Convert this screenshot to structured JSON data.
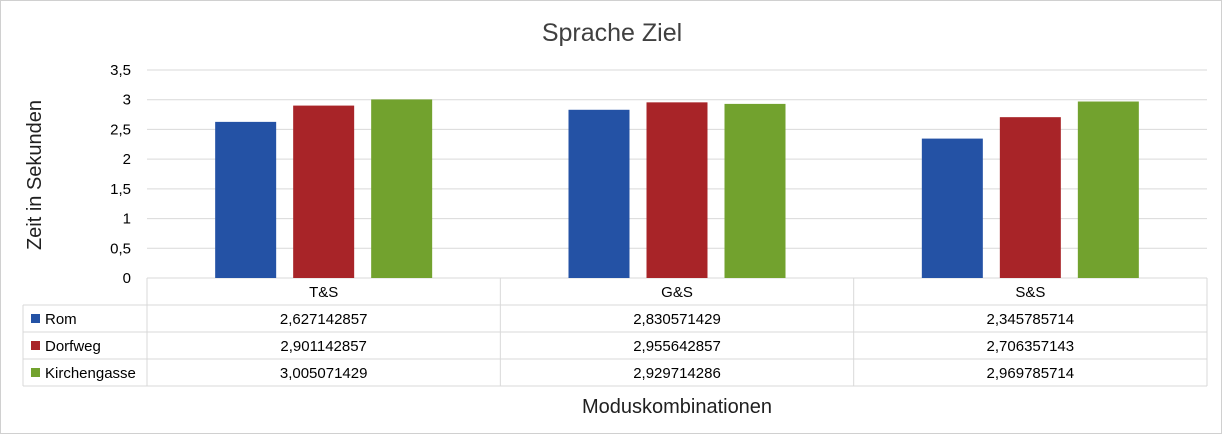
{
  "chart_data": {
    "type": "bar",
    "title": "Sprache Ziel",
    "xlabel": "Moduskombinationen",
    "ylabel": "Zeit in Sekunden",
    "ylim": [
      0,
      3.5
    ],
    "yticks": [
      "0",
      "0,5",
      "1",
      "1,5",
      "2",
      "2,5",
      "3",
      "3,5"
    ],
    "grid": true,
    "legend": "data-table",
    "categories": [
      "T&S",
      "G&S",
      "S&S"
    ],
    "series": [
      {
        "name": "Rom",
        "color": "#2452a5",
        "values": [
          2.627142857,
          2.830571429,
          2.345785714
        ],
        "labels": [
          "2,627142857",
          "2,830571429",
          "2,345785714"
        ]
      },
      {
        "name": "Dorfweg",
        "color": "#a82428",
        "values": [
          2.901142857,
          2.955642857,
          2.706357143
        ],
        "labels": [
          "2,901142857",
          "2,955642857",
          "2,706357143"
        ]
      },
      {
        "name": "Kirchengasse",
        "color": "#72a22e",
        "values": [
          3.005071429,
          2.929714286,
          2.969785714
        ],
        "labels": [
          "3,005071429",
          "2,929714286",
          "2,969785714"
        ]
      }
    ]
  }
}
